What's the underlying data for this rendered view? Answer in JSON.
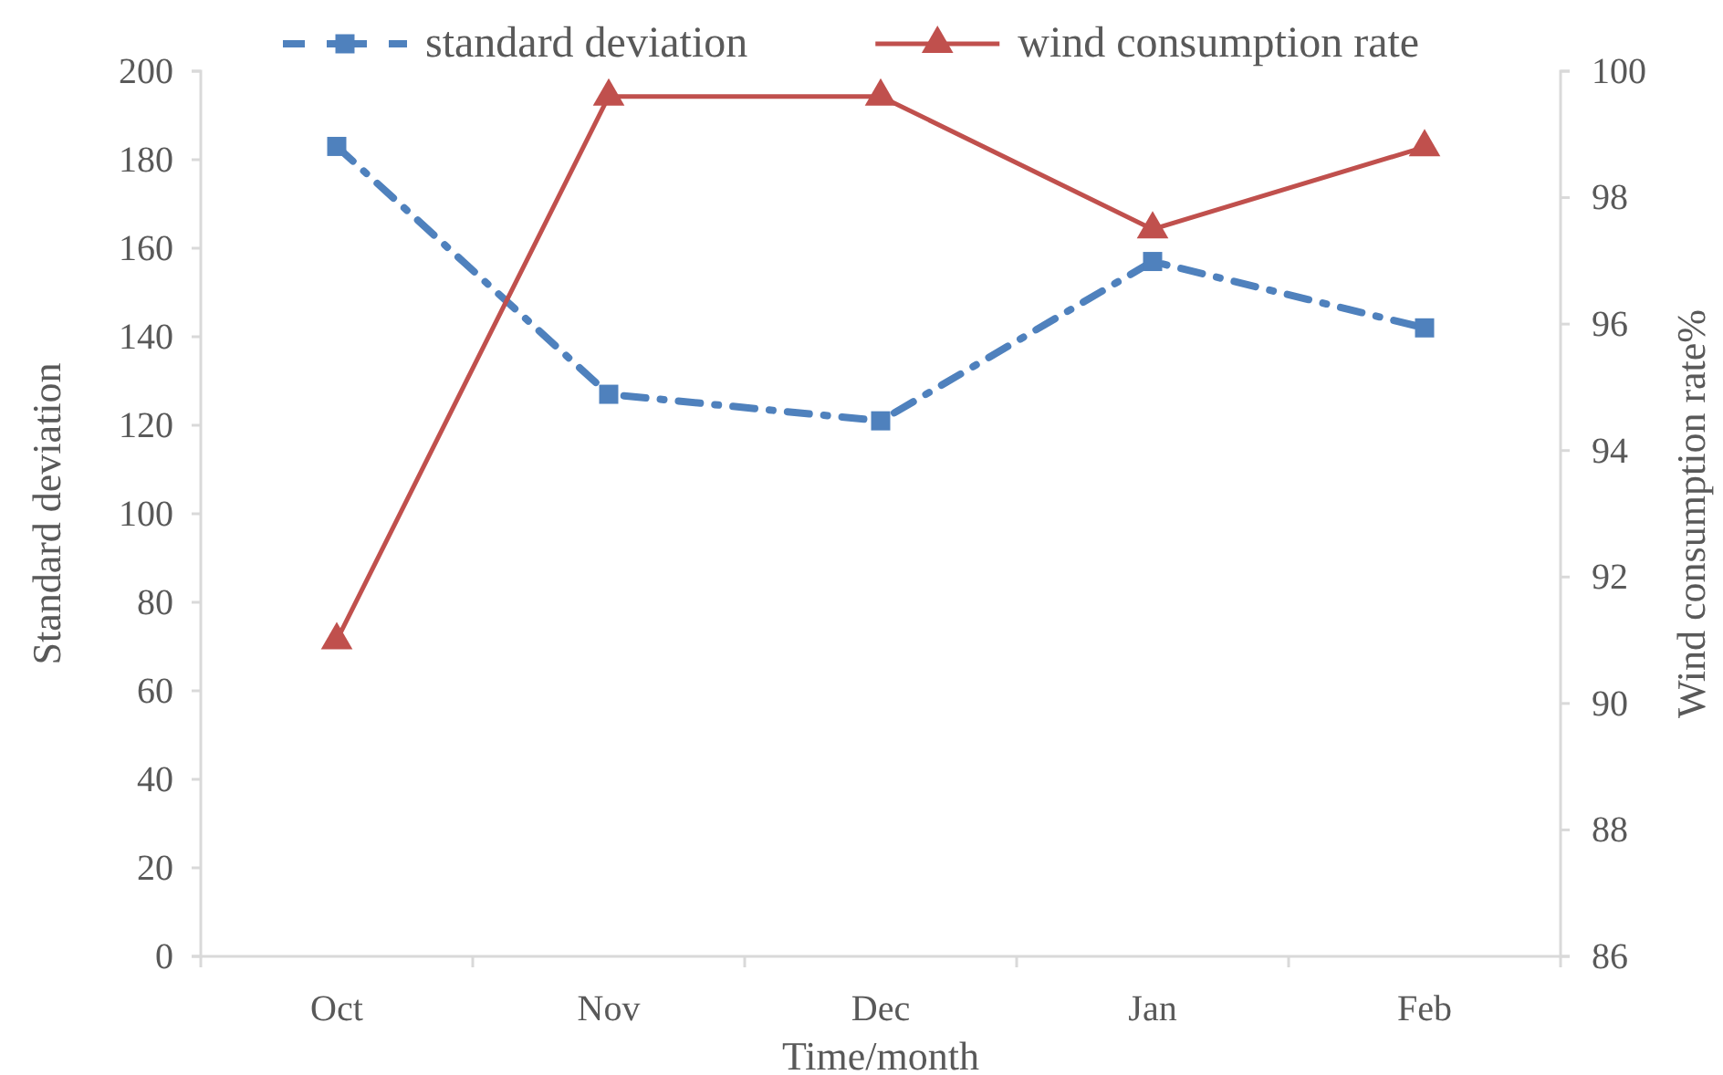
{
  "chart_data": {
    "type": "line",
    "xlabel": "Time/month",
    "ylabel": "Standard deviation",
    "y2label": "Wind consumption rate%",
    "categories": [
      "Oct",
      "Nov",
      "Dec",
      "Jan",
      "Feb"
    ],
    "series": [
      {
        "name": "standard deviation",
        "color": "#4f81bd",
        "values": [
          183,
          127,
          121,
          157,
          142
        ],
        "marker": "square",
        "line_style": "dashdot"
      },
      {
        "name": "wind consumption rate",
        "color": "#c0504d",
        "values": [
          91.0,
          99.6,
          99.6,
          97.5,
          98.8
        ],
        "axis": "y2",
        "marker": "triangle",
        "line_style": "solid"
      }
    ],
    "ylim": [
      0,
      200
    ],
    "yticks": [
      0,
      20,
      40,
      60,
      80,
      100,
      120,
      140,
      160,
      180,
      200
    ],
    "y2lim": [
      86,
      100
    ],
    "y2ticks": [
      86,
      88,
      90,
      92,
      94,
      96,
      98,
      100
    ],
    "grid": false,
    "legend": "top"
  }
}
